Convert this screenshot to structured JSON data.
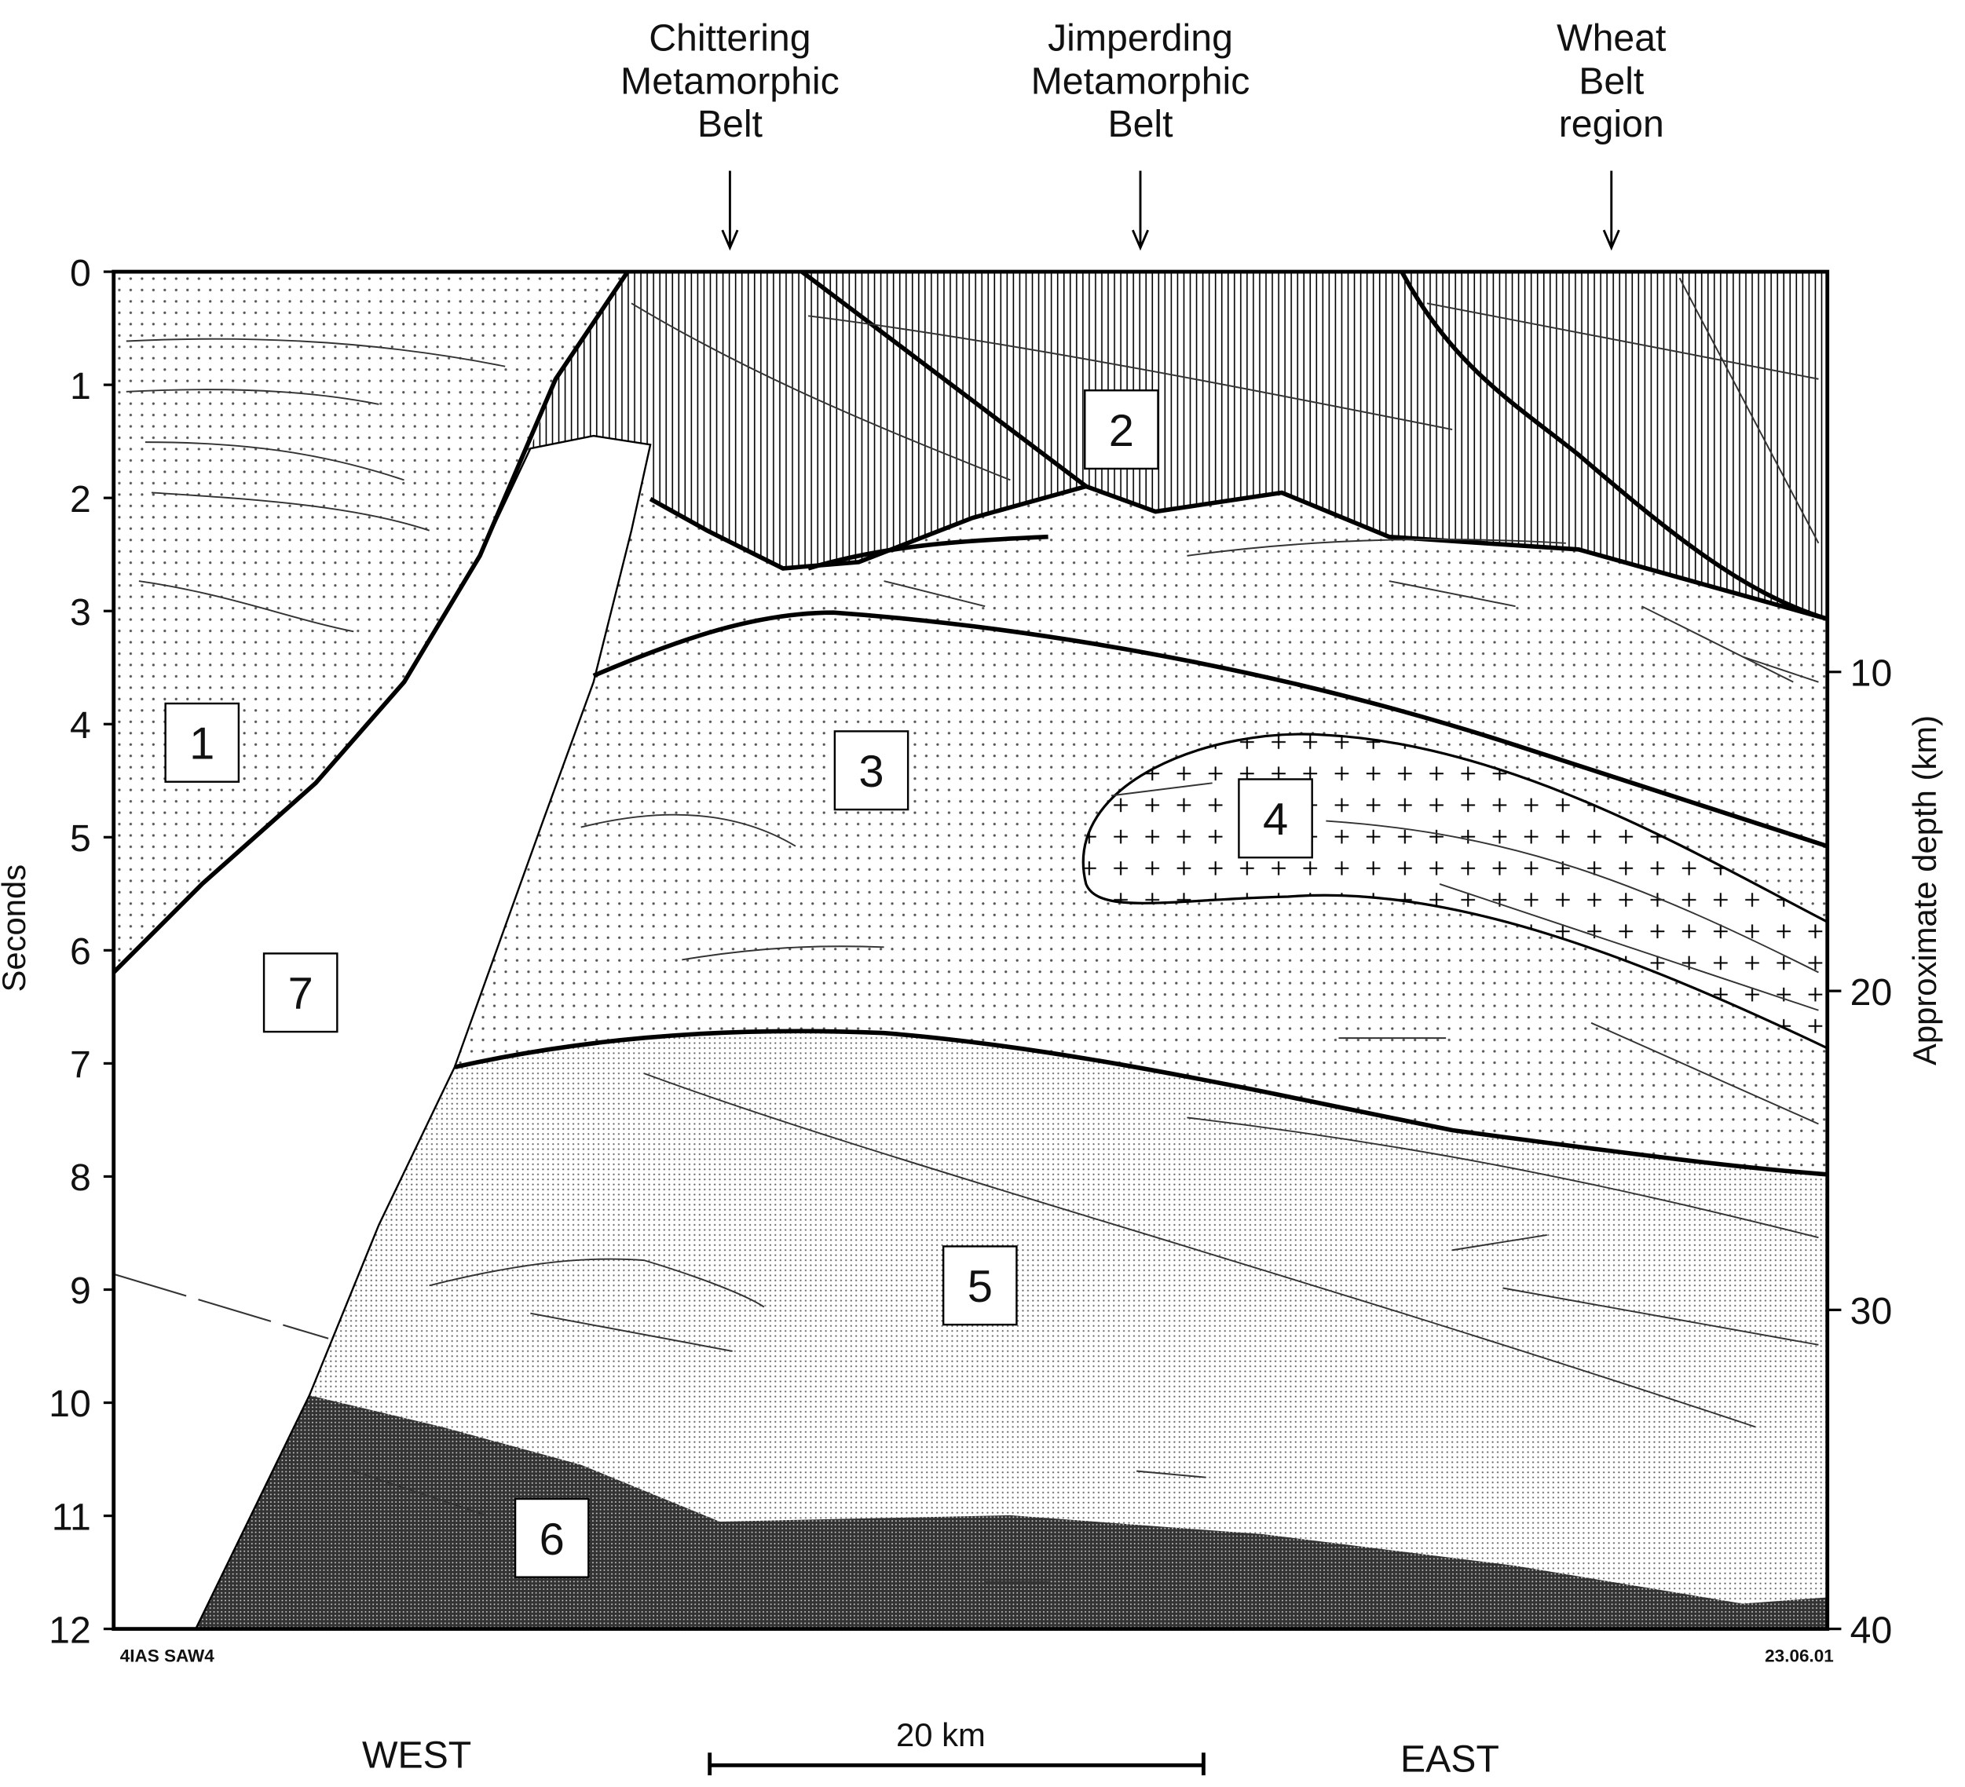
{
  "top_labels": [
    {
      "lines": [
        "Chittering",
        "Metamorphic",
        "Belt"
      ]
    },
    {
      "lines": [
        "Jimperding",
        "Metamorphic",
        "Belt"
      ]
    },
    {
      "lines": [
        "Wheat",
        "Belt",
        "region"
      ]
    }
  ],
  "units": [
    "1",
    "2",
    "3",
    "4",
    "5",
    "6",
    "7"
  ],
  "left_axis": {
    "label": "Seconds",
    "ticks": [
      0,
      1,
      2,
      3,
      4,
      5,
      6,
      7,
      8,
      9,
      10,
      11,
      12
    ]
  },
  "right_axis": {
    "label": "Approximate depth (km)",
    "ticks": [
      10,
      20,
      30,
      40
    ]
  },
  "footer": {
    "code": "4IAS SAW4",
    "date": "23.06.01"
  },
  "directions": {
    "west": "WEST",
    "east": "EAST"
  },
  "scale_bar": "20 km"
}
